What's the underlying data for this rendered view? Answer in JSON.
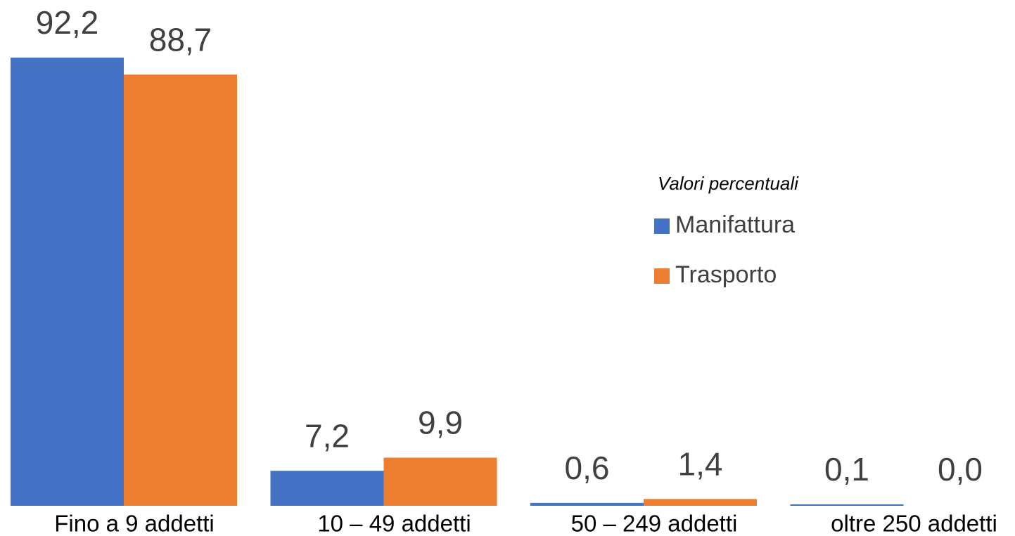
{
  "chart_data": {
    "type": "bar",
    "categories": [
      "Fino a 9 addetti",
      "10 – 49 addetti",
      "50 – 249 addetti",
      "oltre 250 addetti"
    ],
    "series": [
      {
        "name": "Manifattura",
        "color": "#4472c4",
        "values": [
          92.2,
          7.2,
          0.6,
          0.1
        ],
        "value_labels": [
          "92,2",
          "7,2",
          "0,6",
          "0,1"
        ]
      },
      {
        "name": "Trasporto",
        "color": "#ed7d31",
        "values": [
          88.7,
          9.9,
          1.4,
          0.0
        ],
        "value_labels": [
          "88,7",
          "9,9",
          "1,4",
          "0,0"
        ]
      }
    ],
    "legend_title": "Valori percentuali",
    "legend": "right",
    "ylim": [
      0,
      100
    ]
  }
}
